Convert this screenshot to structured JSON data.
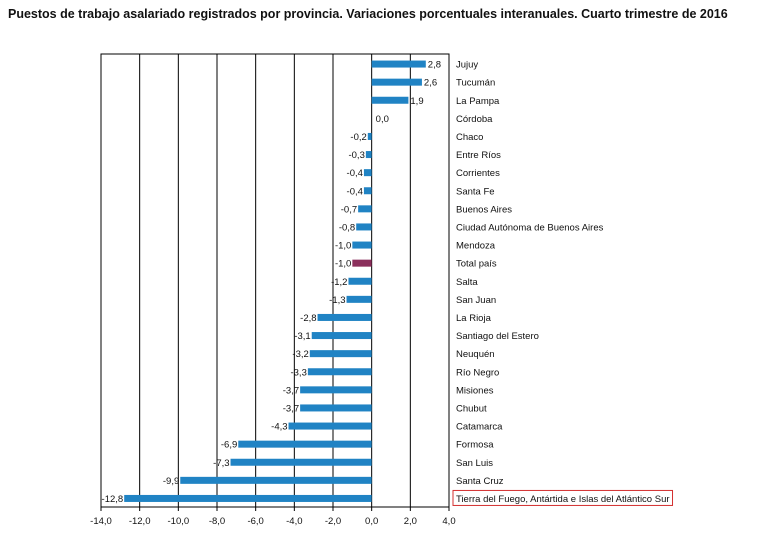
{
  "chart_data": {
    "type": "bar",
    "orientation": "horizontal",
    "title": "Puestos de trabajo asalariado registrados por provincia. Variaciones porcentuales interanuales. Cuarto trimestre de 2016",
    "categories": [
      "Jujuy",
      "Tucumán",
      "La Pampa",
      "Córdoba",
      "Chaco",
      "Entre Ríos",
      "Corrientes",
      "Santa Fe",
      "Buenos Aires",
      "Ciudad Autónoma de Buenos Aires",
      "Mendoza",
      "Total país",
      "Salta",
      "San Juan",
      "La Rioja",
      "Santiago del Estero",
      "Neuquén",
      "Río Negro",
      "Misiones",
      "Chubut",
      "Catamarca",
      "Formosa",
      "San Luis",
      "Santa Cruz",
      "Tierra del Fuego, Antártida e Islas del Atlántico Sur"
    ],
    "values": [
      2.8,
      2.6,
      1.9,
      0.0,
      -0.2,
      -0.3,
      -0.4,
      -0.4,
      -0.7,
      -0.8,
      -1.0,
      -1.0,
      -1.2,
      -1.3,
      -2.8,
      -3.1,
      -3.2,
      -3.3,
      -3.7,
      -3.7,
      -4.3,
      -6.9,
      -7.3,
      -9.9,
      -12.8
    ],
    "value_labels": [
      "2,8",
      "2,6",
      "1,9",
      "0,0",
      "-0,2",
      "-0,3",
      "-0,4",
      "-0,4",
      "-0,7",
      "-0,8",
      "-1,0",
      "-1,0",
      "-1,2",
      "-1,3",
      "-2,8",
      "-3,1",
      "-3,2",
      "-3,3",
      "-3,7",
      "-3,7",
      "-4,3",
      "-6,9",
      "-7,3",
      "-9,9",
      "-12,8"
    ],
    "xlim": [
      -14.0,
      4.0
    ],
    "xticks": [
      "-14,0",
      "-12,0",
      "-10,0",
      "-8,0",
      "-6,0",
      "-4,0",
      "-2,0",
      "0,0",
      "2,0",
      "4,0"
    ],
    "xtick_values": [
      -14,
      -12,
      -10,
      -8,
      -6,
      -4,
      -2,
      0,
      2,
      4
    ],
    "grid": "vertical",
    "colors": {
      "bar": "#2083c4",
      "highlight": "#8b2f5c",
      "grid": "#000000",
      "boxed_label": "#d32f2f"
    },
    "highlight_category": "Total país",
    "boxed_category": "Tierra del Fuego, Antártida e Islas del Atlántico Sur"
  }
}
